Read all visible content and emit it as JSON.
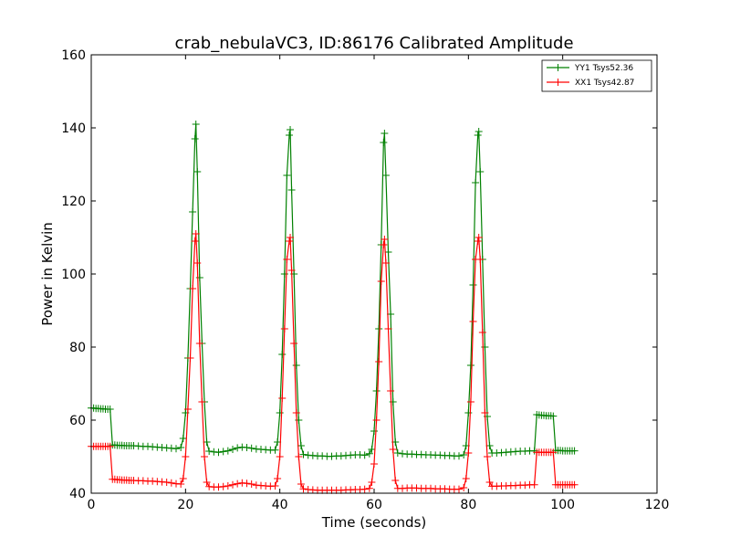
{
  "chart_data": {
    "type": "line",
    "title": "crab_nebulaVC3, ID:86176 Calibrated Amplitude",
    "xlabel": "Time (seconds)",
    "ylabel": "Power in Kelvin",
    "xlim": [
      0,
      120
    ],
    "ylim": [
      40,
      160
    ],
    "xticks": [
      0,
      20,
      40,
      60,
      80,
      100,
      120
    ],
    "yticks": [
      40,
      60,
      80,
      100,
      120,
      140,
      160
    ],
    "grid": false,
    "legend_position": "top-right",
    "marker": "plus",
    "series": [
      {
        "name": "YY1 Tsys52.36",
        "color": "#008000",
        "points": [
          [
            0,
            63.3
          ],
          [
            0.5,
            63.3
          ],
          [
            1,
            63.2
          ],
          [
            1.5,
            63.2
          ],
          [
            2,
            63.1
          ],
          [
            2.5,
            63.1
          ],
          [
            3,
            63.0
          ],
          [
            3.5,
            63.0
          ],
          [
            4,
            63.0
          ],
          [
            4.5,
            53.2
          ],
          [
            5,
            53.2
          ],
          [
            5.5,
            53.1
          ],
          [
            6,
            53.1
          ],
          [
            6.5,
            53.1
          ],
          [
            7,
            53.0
          ],
          [
            7.5,
            53.0
          ],
          [
            8,
            53.0
          ],
          [
            8.5,
            53.0
          ],
          [
            9,
            53.0
          ],
          [
            10,
            52.9
          ],
          [
            11,
            52.8
          ],
          [
            12,
            52.8
          ],
          [
            13,
            52.7
          ],
          [
            14,
            52.6
          ],
          [
            15,
            52.5
          ],
          [
            16,
            52.4
          ],
          [
            17,
            52.3
          ],
          [
            18,
            52.2
          ],
          [
            19,
            52.5
          ],
          [
            19.5,
            55.0
          ],
          [
            20,
            62.0
          ],
          [
            20.5,
            77.0
          ],
          [
            21,
            96.0
          ],
          [
            21.5,
            117.0
          ],
          [
            22,
            137.0
          ],
          [
            22.2,
            141.0
          ],
          [
            22.5,
            128.0
          ],
          [
            23,
            99.0
          ],
          [
            23.5,
            81.0
          ],
          [
            24,
            65.0
          ],
          [
            24.5,
            54.0
          ],
          [
            25,
            51.5
          ],
          [
            26,
            51.3
          ],
          [
            27,
            51.2
          ],
          [
            28,
            51.4
          ],
          [
            29,
            51.6
          ],
          [
            30,
            52.0
          ],
          [
            31,
            52.4
          ],
          [
            32,
            52.6
          ],
          [
            33,
            52.5
          ],
          [
            34,
            52.3
          ],
          [
            35,
            52.1
          ],
          [
            36,
            52.0
          ],
          [
            37,
            51.9
          ],
          [
            38,
            51.8
          ],
          [
            39,
            51.8
          ],
          [
            39.5,
            54.0
          ],
          [
            40,
            62.0
          ],
          [
            40.5,
            78.0
          ],
          [
            41,
            100.0
          ],
          [
            41.5,
            127.0
          ],
          [
            42,
            138.0
          ],
          [
            42.2,
            139.5
          ],
          [
            42.5,
            123.0
          ],
          [
            43,
            100.0
          ],
          [
            43.5,
            75.0
          ],
          [
            44,
            60.0
          ],
          [
            44.5,
            53.0
          ],
          [
            45,
            50.6
          ],
          [
            46,
            50.4
          ],
          [
            47,
            50.3
          ],
          [
            48,
            50.2
          ],
          [
            49,
            50.2
          ],
          [
            50,
            50.1
          ],
          [
            51,
            50.1
          ],
          [
            52,
            50.2
          ],
          [
            53,
            50.2
          ],
          [
            54,
            50.3
          ],
          [
            55,
            50.4
          ],
          [
            56,
            50.5
          ],
          [
            57,
            50.5
          ],
          [
            58,
            50.4
          ],
          [
            59,
            50.8
          ],
          [
            59.5,
            52.0
          ],
          [
            60,
            57.0
          ],
          [
            60.5,
            68.0
          ],
          [
            61,
            85.0
          ],
          [
            61.5,
            108.0
          ],
          [
            62,
            136.0
          ],
          [
            62.2,
            138.5
          ],
          [
            62.5,
            127.0
          ],
          [
            63,
            106.0
          ],
          [
            63.5,
            89.0
          ],
          [
            64,
            65.0
          ],
          [
            64.5,
            54.0
          ],
          [
            65,
            51.0
          ],
          [
            66,
            50.8
          ],
          [
            67,
            50.7
          ],
          [
            68,
            50.7
          ],
          [
            69,
            50.6
          ],
          [
            70,
            50.6
          ],
          [
            71,
            50.5
          ],
          [
            72,
            50.5
          ],
          [
            73,
            50.4
          ],
          [
            74,
            50.4
          ],
          [
            75,
            50.3
          ],
          [
            76,
            50.3
          ],
          [
            77,
            50.2
          ],
          [
            78,
            50.2
          ],
          [
            79,
            50.5
          ],
          [
            79.5,
            53.0
          ],
          [
            80,
            62.0
          ],
          [
            80.5,
            75.0
          ],
          [
            81,
            97.0
          ],
          [
            81.5,
            125.0
          ],
          [
            82,
            138.0
          ],
          [
            82.2,
            139.0
          ],
          [
            82.5,
            128.0
          ],
          [
            83,
            104.0
          ],
          [
            83.5,
            80.0
          ],
          [
            84,
            61.0
          ],
          [
            84.5,
            53.0
          ],
          [
            85,
            51.0
          ],
          [
            86,
            51.0
          ],
          [
            87,
            51.1
          ],
          [
            88,
            51.2
          ],
          [
            89,
            51.3
          ],
          [
            90,
            51.4
          ],
          [
            91,
            51.5
          ],
          [
            92,
            51.5
          ],
          [
            93,
            51.6
          ],
          [
            94,
            51.6
          ],
          [
            94.5,
            61.5
          ],
          [
            95,
            61.4
          ],
          [
            95.5,
            61.3
          ],
          [
            96,
            61.3
          ],
          [
            96.5,
            61.2
          ],
          [
            97,
            61.2
          ],
          [
            97.5,
            61.2
          ],
          [
            98,
            61.1
          ],
          [
            98.5,
            51.7
          ],
          [
            99,
            51.7
          ],
          [
            99.5,
            51.7
          ],
          [
            100,
            51.6
          ],
          [
            100.5,
            51.6
          ],
          [
            101,
            51.6
          ],
          [
            101.5,
            51.6
          ],
          [
            102,
            51.6
          ],
          [
            102.5,
            51.6
          ]
        ]
      },
      {
        "name": "XX1 Tsys42.87",
        "color": "#ff0000",
        "points": [
          [
            0,
            52.8
          ],
          [
            0.5,
            52.8
          ],
          [
            1,
            52.8
          ],
          [
            1.5,
            52.8
          ],
          [
            2,
            52.8
          ],
          [
            2.5,
            52.8
          ],
          [
            3,
            52.8
          ],
          [
            3.5,
            52.8
          ],
          [
            4,
            52.8
          ],
          [
            4.5,
            43.8
          ],
          [
            5,
            43.8
          ],
          [
            5.5,
            43.7
          ],
          [
            6,
            43.7
          ],
          [
            6.5,
            43.6
          ],
          [
            7,
            43.6
          ],
          [
            7.5,
            43.6
          ],
          [
            8,
            43.5
          ],
          [
            8.5,
            43.5
          ],
          [
            9,
            43.5
          ],
          [
            10,
            43.4
          ],
          [
            11,
            43.4
          ],
          [
            12,
            43.3
          ],
          [
            13,
            43.3
          ],
          [
            14,
            43.2
          ],
          [
            15,
            43.1
          ],
          [
            16,
            43.0
          ],
          [
            17,
            42.8
          ],
          [
            18,
            42.6
          ],
          [
            19,
            42.5
          ],
          [
            19.5,
            44.0
          ],
          [
            20,
            50.0
          ],
          [
            20.5,
            63.0
          ],
          [
            21,
            77.0
          ],
          [
            21.5,
            96.0
          ],
          [
            22,
            109.0
          ],
          [
            22.2,
            111.0
          ],
          [
            22.5,
            103.0
          ],
          [
            23,
            81.0
          ],
          [
            23.5,
            65.0
          ],
          [
            24,
            50.0
          ],
          [
            24.5,
            43.0
          ],
          [
            25,
            41.8
          ],
          [
            26,
            41.7
          ],
          [
            27,
            41.7
          ],
          [
            28,
            41.8
          ],
          [
            29,
            42.0
          ],
          [
            30,
            42.3
          ],
          [
            31,
            42.6
          ],
          [
            32,
            42.8
          ],
          [
            33,
            42.7
          ],
          [
            34,
            42.5
          ],
          [
            35,
            42.2
          ],
          [
            36,
            42.1
          ],
          [
            37,
            42.0
          ],
          [
            38,
            41.9
          ],
          [
            39,
            42.0
          ],
          [
            39.5,
            44.0
          ],
          [
            40,
            50.0
          ],
          [
            40.5,
            66.0
          ],
          [
            41,
            85.0
          ],
          [
            41.5,
            104.0
          ],
          [
            42,
            109.0
          ],
          [
            42.2,
            110.0
          ],
          [
            42.5,
            101.0
          ],
          [
            43,
            81.0
          ],
          [
            43.5,
            62.0
          ],
          [
            44,
            50.0
          ],
          [
            44.5,
            42.5
          ],
          [
            45,
            41.2
          ],
          [
            46,
            41.0
          ],
          [
            47,
            40.9
          ],
          [
            48,
            40.8
          ],
          [
            49,
            40.8
          ],
          [
            50,
            40.8
          ],
          [
            51,
            40.8
          ],
          [
            52,
            40.8
          ],
          [
            53,
            40.8
          ],
          [
            54,
            40.9
          ],
          [
            55,
            40.9
          ],
          [
            56,
            41.0
          ],
          [
            57,
            41.0
          ],
          [
            58,
            41.1
          ],
          [
            59,
            41.3
          ],
          [
            59.5,
            43.0
          ],
          [
            60,
            48.0
          ],
          [
            60.5,
            60.0
          ],
          [
            61,
            76.0
          ],
          [
            61.5,
            98.0
          ],
          [
            62,
            108.0
          ],
          [
            62.2,
            109.5
          ],
          [
            62.5,
            103.0
          ],
          [
            63,
            85.0
          ],
          [
            63.5,
            68.0
          ],
          [
            64,
            52.0
          ],
          [
            64.5,
            43.5
          ],
          [
            65,
            41.3
          ],
          [
            66,
            41.3
          ],
          [
            67,
            41.4
          ],
          [
            68,
            41.4
          ],
          [
            69,
            41.4
          ],
          [
            70,
            41.3
          ],
          [
            71,
            41.3
          ],
          [
            72,
            41.3
          ],
          [
            73,
            41.2
          ],
          [
            74,
            41.2
          ],
          [
            75,
            41.2
          ],
          [
            76,
            41.1
          ],
          [
            77,
            41.1
          ],
          [
            78,
            41.1
          ],
          [
            79,
            41.5
          ],
          [
            79.5,
            44.0
          ],
          [
            80,
            51.0
          ],
          [
            80.5,
            65.0
          ],
          [
            81,
            87.0
          ],
          [
            81.5,
            104.0
          ],
          [
            82,
            109.0
          ],
          [
            82.2,
            110.0
          ],
          [
            82.5,
            104.0
          ],
          [
            83,
            84.0
          ],
          [
            83.5,
            62.0
          ],
          [
            84,
            50.0
          ],
          [
            84.5,
            43.0
          ],
          [
            85,
            41.9
          ],
          [
            86,
            41.9
          ],
          [
            87,
            42.0
          ],
          [
            88,
            42.0
          ],
          [
            89,
            42.1
          ],
          [
            90,
            42.1
          ],
          [
            91,
            42.2
          ],
          [
            92,
            42.2
          ],
          [
            93,
            42.3
          ],
          [
            94,
            42.3
          ],
          [
            94.5,
            51.2
          ],
          [
            95,
            51.2
          ],
          [
            95.5,
            51.2
          ],
          [
            96,
            51.2
          ],
          [
            96.5,
            51.2
          ],
          [
            97,
            51.2
          ],
          [
            97.5,
            51.2
          ],
          [
            98,
            51.2
          ],
          [
            98.5,
            42.3
          ],
          [
            99,
            42.3
          ],
          [
            99.5,
            42.3
          ],
          [
            100,
            42.3
          ],
          [
            100.5,
            42.3
          ],
          [
            101,
            42.3
          ],
          [
            101.5,
            42.3
          ],
          [
            102,
            42.3
          ],
          [
            102.5,
            42.3
          ]
        ]
      }
    ]
  }
}
